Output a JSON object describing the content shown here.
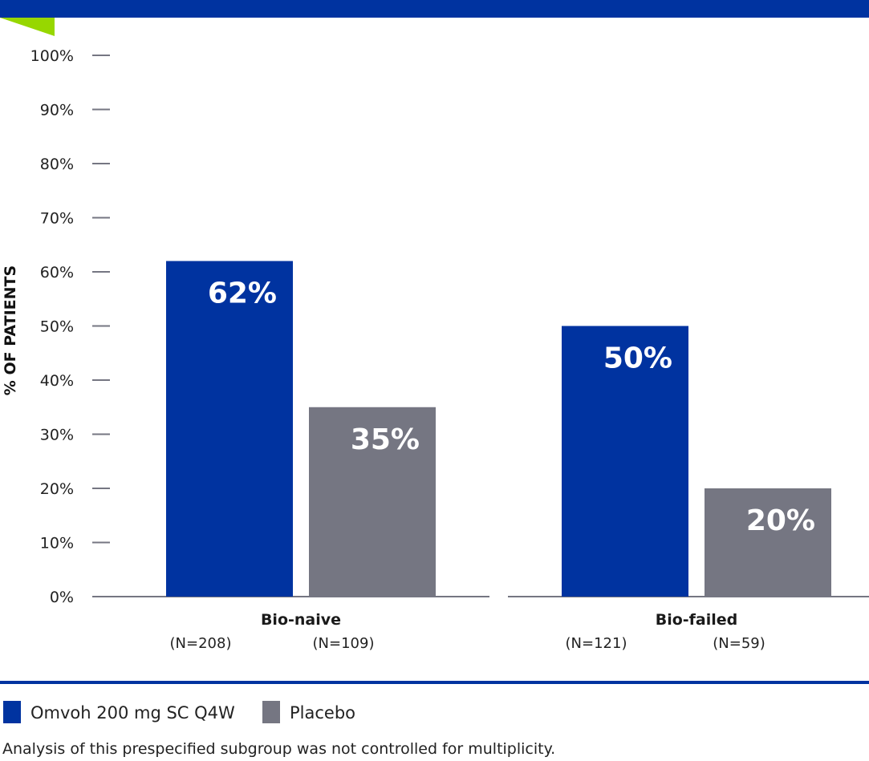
{
  "colors": {
    "omvoh": "#0033a0",
    "placebo": "#757682",
    "accent": "#97d700",
    "axis": "#757682"
  },
  "chart_data": {
    "type": "bar",
    "ylabel": "% OF PATIENTS",
    "ylim": [
      0,
      100
    ],
    "yticks": [
      "0%",
      "10%",
      "20%",
      "30%",
      "40%",
      "50%",
      "60%",
      "70%",
      "80%",
      "90%",
      "100%"
    ],
    "categories": [
      "Bio-naive",
      "Bio-failed"
    ],
    "series": [
      {
        "name": "Omvoh 200 mg SC Q4W",
        "values": [
          62,
          50
        ],
        "labels": [
          "62%",
          "50%"
        ],
        "n": [
          "(N=208)",
          "(N=121)"
        ]
      },
      {
        "name": "Placebo",
        "values": [
          35,
          20
        ],
        "labels": [
          "35%",
          "20%"
        ],
        "n": [
          "(N=109)",
          "(N=59)"
        ]
      }
    ],
    "legend": [
      "Omvoh 200 mg SC Q4W",
      "Placebo"
    ],
    "legend_position": "bottom-left"
  },
  "footnote": "Analysis of this prespecified subgroup was not controlled for multiplicity."
}
